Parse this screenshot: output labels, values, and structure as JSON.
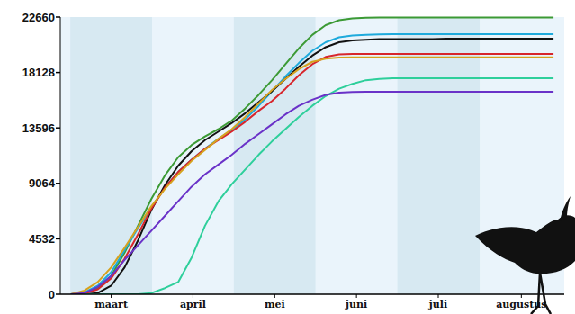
{
  "chart_data": {
    "type": "line",
    "x": [
      0,
      5,
      10,
      15,
      20,
      25,
      30,
      35,
      40,
      45,
      50,
      55,
      60,
      65,
      70,
      75,
      80,
      85,
      90,
      95,
      100,
      105,
      110,
      115,
      120,
      125,
      130,
      135,
      140,
      145,
      150,
      155,
      160,
      165,
      170,
      175,
      180
    ],
    "xlim": [
      -4,
      184
    ],
    "xticks": [
      {
        "value": 15,
        "label": "maart"
      },
      {
        "value": 45.5,
        "label": "april"
      },
      {
        "value": 76,
        "label": "mei"
      },
      {
        "value": 106.5,
        "label": "juni"
      },
      {
        "value": 137,
        "label": "juli"
      },
      {
        "value": 168,
        "label": "augustus"
      }
    ],
    "ylim": [
      0,
      22660
    ],
    "yticks": [
      0,
      4532,
      9064,
      13596,
      18128,
      22660
    ],
    "series": [
      {
        "color": "#3c9a35",
        "values": [
          0,
          100,
          500,
          1500,
          3400,
          5600,
          7800,
          9700,
          11200,
          12200,
          12900,
          13500,
          14200,
          15200,
          16300,
          17500,
          18800,
          20100,
          21200,
          22000,
          22400,
          22550,
          22600,
          22620,
          22620,
          22620,
          22620,
          22620,
          22620,
          22620,
          22620,
          22620,
          22620,
          22620,
          22620,
          22620,
          22620
        ]
      },
      {
        "color": "#1eaadc",
        "values": [
          0,
          150,
          700,
          1800,
          3600,
          5400,
          7100,
          8700,
          10000,
          11000,
          11900,
          12700,
          13400,
          14300,
          15400,
          16600,
          17800,
          18900,
          19900,
          20600,
          21000,
          21150,
          21200,
          21250,
          21270,
          21270,
          21270,
          21270,
          21270,
          21270,
          21270,
          21270,
          21270,
          21270,
          21270,
          21270,
          21270
        ]
      },
      {
        "color": "#111111",
        "values": [
          0,
          0,
          100,
          700,
          2200,
          4400,
          6900,
          8900,
          10500,
          11700,
          12600,
          13300,
          14000,
          14800,
          15700,
          16600,
          17600,
          18600,
          19500,
          20200,
          20600,
          20750,
          20800,
          20850,
          20850,
          20850,
          20850,
          20850,
          20900,
          20900,
          20900,
          20900,
          20900,
          20900,
          20900,
          20900,
          20900
        ]
      },
      {
        "color": "#d7262c",
        "values": [
          0,
          50,
          400,
          1300,
          2900,
          4900,
          7000,
          8700,
          10000,
          11000,
          11900,
          12600,
          13300,
          14100,
          15000,
          15800,
          16800,
          17900,
          18800,
          19400,
          19600,
          19650,
          19650,
          19650,
          19650,
          19650,
          19650,
          19650,
          19650,
          19650,
          19650,
          19650,
          19650,
          19650,
          19650,
          19650,
          19650
        ]
      },
      {
        "color": "#d6a21e",
        "values": [
          0,
          300,
          1000,
          2200,
          3800,
          5500,
          7200,
          8600,
          9800,
          10900,
          11800,
          12700,
          13500,
          14500,
          15600,
          16700,
          17600,
          18400,
          19000,
          19250,
          19350,
          19360,
          19360,
          19360,
          19360,
          19360,
          19360,
          19360,
          19360,
          19360,
          19360,
          19360,
          19360,
          19360,
          19360,
          19360,
          19360
        ]
      },
      {
        "color": "#2ecf9b",
        "values": [
          0,
          0,
          0,
          0,
          0,
          0,
          100,
          500,
          1000,
          3000,
          5600,
          7600,
          9000,
          10200,
          11400,
          12500,
          13500,
          14500,
          15400,
          16200,
          16800,
          17200,
          17500,
          17600,
          17650,
          17650,
          17650,
          17650,
          17650,
          17650,
          17650,
          17650,
          17650,
          17650,
          17650,
          17650,
          17650
        ]
      },
      {
        "color": "#6a32c8",
        "values": [
          0,
          100,
          600,
          1500,
          2800,
          4000,
          5200,
          6400,
          7600,
          8800,
          9800,
          10600,
          11400,
          12300,
          13100,
          13900,
          14700,
          15400,
          15900,
          16300,
          16480,
          16540,
          16560,
          16560,
          16560,
          16560,
          16560,
          16560,
          16560,
          16560,
          16560,
          16560,
          16560,
          16560,
          16560,
          16560,
          16560
        ]
      }
    ]
  }
}
